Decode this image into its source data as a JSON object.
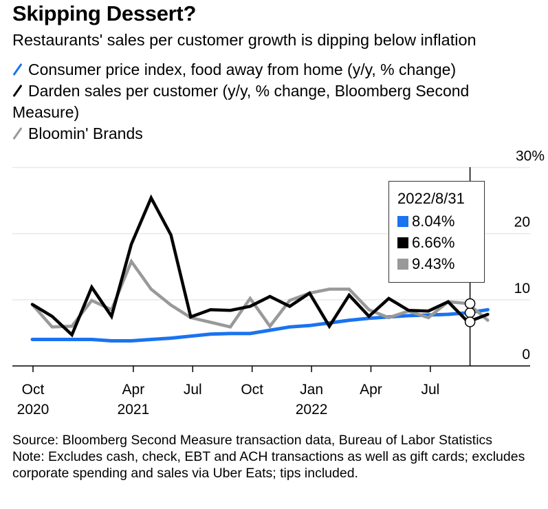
{
  "header": {
    "title": "Skipping Dessert?",
    "subtitle": "Restaurants' sales per customer growth is dipping below inflation"
  },
  "legend": [
    {
      "label": "Consumer price index, food away from home (y/y, % change)",
      "color": "#1a73f0"
    },
    {
      "label": "Darden sales per customer (y/y, % change, Bloomberg Second Measure)",
      "color": "#000000"
    },
    {
      "label": "Bloomin' Brands",
      "color": "#999999"
    }
  ],
  "tooltip": {
    "date": "2022/8/31",
    "values": [
      {
        "label": "8.04%",
        "color": "#1a73f0"
      },
      {
        "label": "6.66%",
        "color": "#000000"
      },
      {
        "label": "9.43%",
        "color": "#999999"
      }
    ]
  },
  "footer": {
    "source": "Source: Bloomberg Second Measure transaction data, Bureau of Labor Statistics",
    "note": "Note: Excludes cash, check, EBT and ACH transactions as well as gift cards; excludes corporate spending and sales via Uber Eats; tips included."
  },
  "chart_data": {
    "type": "line",
    "title": "Skipping Dessert?",
    "subtitle": "Restaurants' sales per customer growth is dipping below inflation",
    "xlabel": "",
    "ylabel": "",
    "ylim": [
      0,
      30
    ],
    "yticks": [
      {
        "value": 30,
        "label": "30%"
      },
      {
        "value": 20,
        "label": "20"
      },
      {
        "value": 10,
        "label": "10"
      },
      {
        "value": 0,
        "label": "0"
      }
    ],
    "y_axis_side": "right",
    "grid": true,
    "legend_position": "top-left",
    "x": [
      "2020-10-31",
      "2020-11-30",
      "2020-12-31",
      "2021-01-31",
      "2021-02-28",
      "2021-03-31",
      "2021-04-30",
      "2021-05-31",
      "2021-06-30",
      "2021-07-31",
      "2021-08-31",
      "2021-09-30",
      "2021-10-31",
      "2021-11-30",
      "2021-12-31",
      "2022-01-31",
      "2022-02-28",
      "2022-03-31",
      "2022-04-30",
      "2022-05-31",
      "2022-06-30",
      "2022-07-31",
      "2022-08-31",
      "2022-09-30"
    ],
    "xticks": [
      {
        "index": 0,
        "label": "Oct",
        "sublabel": "2020"
      },
      {
        "index": 5.1,
        "label": "Apr",
        "sublabel": "2021"
      },
      {
        "index": 8.1,
        "label": "Jul",
        "sublabel": ""
      },
      {
        "index": 11.1,
        "label": "Oct",
        "sublabel": ""
      },
      {
        "index": 14.1,
        "label": "Jan",
        "sublabel": "2022"
      },
      {
        "index": 17.1,
        "label": "Apr",
        "sublabel": ""
      },
      {
        "index": 20.1,
        "label": "Jul",
        "sublabel": ""
      }
    ],
    "series": [
      {
        "name": "Consumer price index, food away from home (y/y, % change)",
        "color": "#1a73f0",
        "values": [
          4.0,
          4.0,
          4.0,
          4.0,
          3.8,
          3.8,
          4.0,
          4.2,
          4.5,
          4.8,
          4.9,
          4.9,
          5.4,
          5.9,
          6.1,
          6.5,
          6.9,
          7.2,
          7.4,
          7.6,
          7.7,
          7.8,
          8.04,
          8.5
        ]
      },
      {
        "name": "Darden sales per customer (y/y, % change, Bloomberg Second Measure)",
        "color": "#000000",
        "values": [
          9.3,
          7.5,
          4.7,
          11.9,
          7.5,
          18.4,
          25.4,
          19.8,
          7.4,
          8.5,
          8.4,
          9.0,
          10.5,
          9.0,
          11.0,
          6.0,
          10.7,
          7.5,
          10.2,
          8.4,
          8.3,
          9.7,
          6.66,
          7.8
        ]
      },
      {
        "name": "Bloomin' Brands",
        "color": "#999999",
        "values": [
          9.3,
          5.9,
          6.0,
          9.9,
          8.5,
          15.8,
          11.6,
          9.2,
          7.3,
          6.6,
          5.9,
          10.2,
          6.0,
          9.9,
          11.0,
          11.6,
          11.6,
          8.5,
          7.3,
          8.3,
          7.3,
          9.7,
          9.43,
          6.9
        ]
      }
    ],
    "crosshair": {
      "index": 22,
      "label": "2022/8/31"
    }
  }
}
